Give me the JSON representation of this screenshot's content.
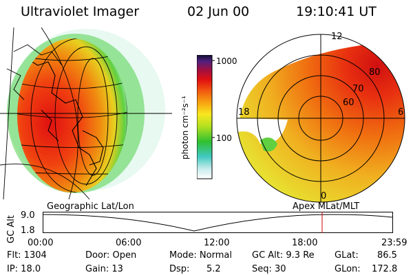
{
  "header": {
    "instrument": "Ultraviolet Imager",
    "date": "02 Jun 00",
    "time": "19:10:41 UT"
  },
  "colors": {
    "map_outline": "#000000",
    "alt_marker": "#cc0000"
  },
  "colorbar": {
    "unit": "photon cm⁻²s⁻¹",
    "ticks": [
      "1000",
      "100"
    ]
  },
  "polar_plot": {
    "mlt_labels": {
      "top": "12",
      "left": "18",
      "right": "6",
      "bottom": "0"
    },
    "mlat_labels": [
      "80",
      "70",
      "60"
    ]
  },
  "map_labels": {
    "left": "Geographic Lat/Lon",
    "right": "Apex MLat/MLT"
  },
  "altitude_plot": {
    "ylabel": "GC Alt",
    "yticks": [
      "9.0",
      "1.8"
    ],
    "xticks": [
      "00:00",
      "06:00",
      "12:00",
      "18:00",
      "23:59"
    ],
    "marker_time_hours": 19.18
  },
  "info": {
    "flt": "Flt: 1304",
    "ip": "IP: 18.0",
    "door": "Door: Open",
    "gain": "Gain: 13",
    "mode": "Mode: Normal",
    "dsp_label": "Dsp:",
    "dsp_value": "5.2",
    "gcalt": "GC Alt: 9.3 Re",
    "seq": "Seq: 30",
    "glat_label": "GLat:",
    "glat_value": "86.5",
    "glon_label": "GLon:",
    "glon_value": "172.8"
  }
}
